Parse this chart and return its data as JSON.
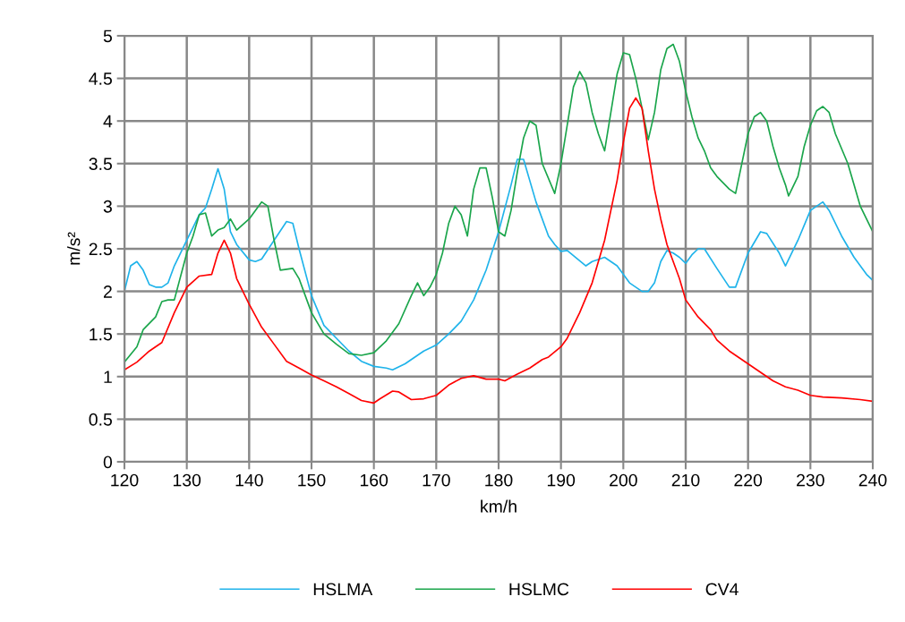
{
  "chart_data": {
    "type": "line",
    "xlabel": "km/h",
    "ylabel": "m/s²",
    "xlim": [
      120,
      240
    ],
    "xticks": [
      120,
      130,
      140,
      150,
      160,
      170,
      180,
      190,
      200,
      210,
      220,
      230,
      240
    ],
    "ylim": [
      0,
      5
    ],
    "yticks": [
      0,
      0.5,
      1,
      1.5,
      2,
      2.5,
      3,
      3.5,
      4,
      4.5,
      5
    ],
    "grid": true,
    "legend": "bottom",
    "marker": "none",
    "line_style": "solid",
    "series": [
      {
        "name": "HSLMA",
        "color": "#1fb3ea",
        "x": [
          120,
          121,
          122,
          123,
          124,
          125,
          126,
          127,
          128,
          130,
          132,
          133,
          134,
          135,
          136,
          137,
          138,
          140,
          141,
          142,
          144,
          146,
          147,
          148,
          150,
          152,
          154,
          156,
          158,
          160,
          162,
          163,
          165,
          167,
          168,
          170,
          172,
          174,
          176,
          178,
          180,
          182,
          183,
          184,
          186,
          188,
          189,
          190,
          191,
          192,
          194,
          195,
          197,
          199,
          201,
          203,
          204,
          205,
          206,
          207,
          208,
          209,
          210,
          211,
          212,
          213,
          215,
          217,
          218,
          220,
          222,
          223,
          225,
          226,
          228,
          230,
          232,
          233,
          235,
          237,
          239,
          240
        ],
        "values": [
          2.0,
          2.3,
          2.35,
          2.25,
          2.08,
          2.05,
          2.05,
          2.1,
          2.3,
          2.6,
          2.9,
          2.98,
          3.2,
          3.44,
          3.2,
          2.7,
          2.55,
          2.37,
          2.35,
          2.38,
          2.6,
          2.82,
          2.8,
          2.5,
          1.95,
          1.6,
          1.45,
          1.3,
          1.18,
          1.12,
          1.1,
          1.08,
          1.15,
          1.25,
          1.3,
          1.37,
          1.5,
          1.65,
          1.9,
          2.25,
          2.7,
          3.25,
          3.55,
          3.55,
          3.05,
          2.65,
          2.55,
          2.47,
          2.48,
          2.42,
          2.3,
          2.35,
          2.4,
          2.3,
          2.1,
          2.0,
          2.0,
          2.1,
          2.35,
          2.48,
          2.45,
          2.4,
          2.33,
          2.43,
          2.5,
          2.5,
          2.27,
          2.05,
          2.05,
          2.45,
          2.7,
          2.68,
          2.45,
          2.3,
          2.6,
          2.95,
          3.05,
          2.95,
          2.65,
          2.4,
          2.2,
          2.13
        ]
      },
      {
        "name": "HSLMC",
        "color": "#1aa54b",
        "x": [
          120,
          122,
          123,
          125,
          126,
          127,
          128,
          130,
          131,
          132,
          133,
          134,
          135,
          136,
          137,
          138,
          140,
          142,
          143,
          144,
          145,
          147,
          148,
          149,
          150,
          152,
          154,
          156,
          158,
          160,
          162,
          164,
          166,
          167,
          168,
          169,
          170,
          171,
          172,
          173,
          174,
          175,
          176,
          177,
          178,
          179,
          180,
          181,
          182,
          183,
          184,
          185,
          186,
          187,
          189,
          190,
          192,
          193,
          194,
          195,
          196,
          197,
          198,
          199,
          200,
          201,
          202,
          203,
          204,
          205,
          206,
          207,
          208,
          209,
          210,
          211,
          212,
          213,
          214,
          215,
          217,
          218,
          219,
          220,
          221,
          222,
          223,
          224,
          225,
          226,
          226.5,
          228,
          229,
          230,
          231,
          232,
          233,
          234,
          236,
          237,
          238,
          240
        ],
        "values": [
          1.17,
          1.35,
          1.55,
          1.7,
          1.88,
          1.9,
          1.9,
          2.45,
          2.65,
          2.9,
          2.92,
          2.65,
          2.72,
          2.75,
          2.85,
          2.72,
          2.85,
          3.05,
          3.0,
          2.6,
          2.25,
          2.27,
          2.15,
          1.95,
          1.75,
          1.5,
          1.38,
          1.27,
          1.25,
          1.28,
          1.42,
          1.62,
          1.95,
          2.1,
          1.95,
          2.05,
          2.2,
          2.45,
          2.8,
          3.0,
          2.9,
          2.65,
          3.2,
          3.45,
          3.45,
          3.1,
          2.7,
          2.65,
          2.95,
          3.4,
          3.8,
          4.0,
          3.95,
          3.5,
          3.15,
          3.5,
          4.4,
          4.58,
          4.45,
          4.1,
          3.85,
          3.65,
          4.1,
          4.55,
          4.8,
          4.78,
          4.5,
          4.15,
          3.78,
          4.1,
          4.6,
          4.85,
          4.9,
          4.7,
          4.35,
          4.05,
          3.8,
          3.65,
          3.45,
          3.35,
          3.2,
          3.15,
          3.5,
          3.85,
          4.05,
          4.1,
          4.0,
          3.7,
          3.45,
          3.25,
          3.12,
          3.35,
          3.7,
          3.95,
          4.12,
          4.17,
          4.1,
          3.85,
          3.5,
          3.25,
          3.0,
          2.7
        ]
      },
      {
        "name": "CV4",
        "color": "#ff0000",
        "x": [
          120,
          122,
          124,
          126,
          128,
          130,
          132,
          134,
          135,
          136,
          137,
          138,
          140,
          142,
          144,
          146,
          148,
          150,
          152,
          154,
          156,
          158,
          160,
          161,
          163,
          164,
          166,
          168,
          170,
          172,
          174,
          176,
          178,
          180,
          181,
          183,
          185,
          187,
          188,
          190,
          191,
          193,
          195,
          197,
          199,
          200,
          201,
          202,
          203,
          204,
          205,
          206,
          207,
          208,
          209,
          210,
          212,
          214,
          215,
          217,
          219,
          220,
          222,
          224,
          226,
          228,
          230,
          232,
          235,
          238,
          240
        ],
        "values": [
          1.08,
          1.17,
          1.3,
          1.4,
          1.75,
          2.05,
          2.18,
          2.2,
          2.45,
          2.6,
          2.45,
          2.15,
          1.85,
          1.58,
          1.38,
          1.18,
          1.1,
          1.02,
          0.95,
          0.88,
          0.8,
          0.72,
          0.69,
          0.74,
          0.83,
          0.82,
          0.73,
          0.74,
          0.78,
          0.9,
          0.98,
          1.01,
          0.97,
          0.97,
          0.95,
          1.03,
          1.1,
          1.2,
          1.23,
          1.35,
          1.45,
          1.75,
          2.1,
          2.6,
          3.3,
          3.75,
          4.15,
          4.27,
          4.15,
          3.65,
          3.2,
          2.85,
          2.55,
          2.35,
          2.15,
          1.9,
          1.7,
          1.55,
          1.43,
          1.3,
          1.2,
          1.15,
          1.05,
          0.95,
          0.88,
          0.84,
          0.78,
          0.76,
          0.75,
          0.73,
          0.71
        ]
      }
    ]
  }
}
